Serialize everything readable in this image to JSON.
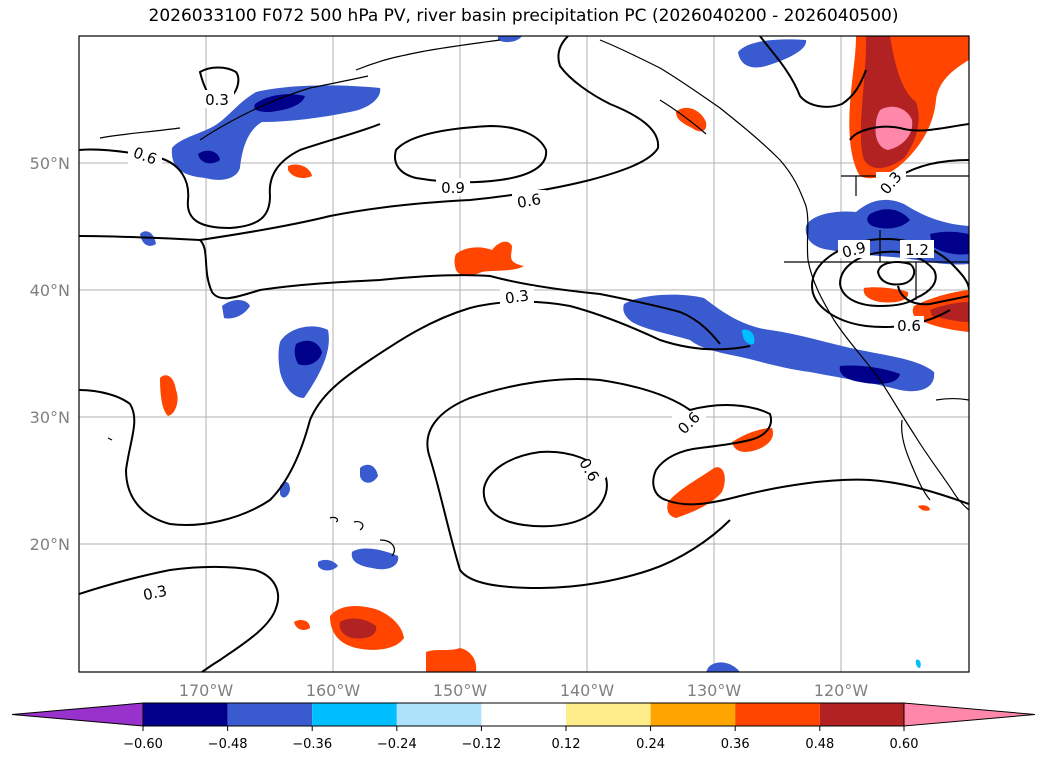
{
  "title": "2026033100 F072 500 hPa PV, river basin precipitation PC (2026040200 - 2026040500)",
  "latitude_labels": [
    "50°N",
    "40°N",
    "30°N",
    "20°N"
  ],
  "longitude_labels": [
    "170°W",
    "160°W",
    "150°W",
    "140°W",
    "130°W",
    "120°W"
  ],
  "contour_labels": [
    "0.3",
    "0.6",
    "0.9",
    "0.6",
    "0.3",
    "0.6",
    "0.6",
    "0.3",
    "0.9",
    "1.2",
    "0.3",
    "0.6"
  ],
  "colorbar": {
    "ticks": [
      "−0.60",
      "−0.48",
      "−0.36",
      "−0.24",
      "−0.12",
      "0.12",
      "0.24",
      "0.36",
      "0.48",
      "0.60"
    ],
    "colors": [
      "#9932cc",
      "#00008b",
      "#3a5bd0",
      "#00bfff",
      "#ade2fa",
      "#ffffff",
      "#ffec8b",
      "#ffa500",
      "#ff4500",
      "#b22222",
      "#ff88aa"
    ]
  }
}
